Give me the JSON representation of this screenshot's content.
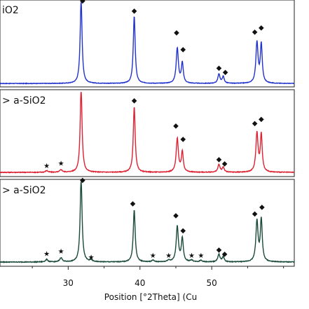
{
  "chart_data": {
    "type": "line",
    "xlabel": "Position [°2Theta] (Cu",
    "xlim": [
      20.5,
      61.5
    ],
    "xticks": [
      30,
      40,
      50
    ],
    "xtick_labels": [
      "30",
      "40",
      "50"
    ],
    "diamond_symbol": "◆",
    "star_symbol": "★",
    "panels": [
      {
        "label": "iO2",
        "color": "#2233cc",
        "base": 0.04,
        "noise": 0.003,
        "peaks": [
          {
            "x": 31.8,
            "h": 1.0,
            "w": 0.16
          },
          {
            "x": 39.2,
            "h": 0.8,
            "w": 0.16
          },
          {
            "x": 45.2,
            "h": 0.42,
            "w": 0.18
          },
          {
            "x": 45.9,
            "h": 0.24,
            "w": 0.16
          },
          {
            "x": 51.0,
            "h": 0.11,
            "w": 0.18
          },
          {
            "x": 51.6,
            "h": 0.08,
            "w": 0.16
          },
          {
            "x": 56.3,
            "h": 0.48,
            "w": 0.18
          },
          {
            "x": 56.9,
            "h": 0.46,
            "w": 0.16
          }
        ],
        "diamonds": [
          32.0,
          39.2,
          45.1,
          46.0,
          51.0,
          51.9,
          56.0,
          56.9
        ],
        "diamond_y": [
          1.0,
          0.88,
          0.62,
          0.42,
          0.2,
          0.15,
          0.63,
          0.68
        ],
        "stars": [],
        "star_y": []
      },
      {
        "label": "> a-SiO2",
        "color": "#dd2233",
        "base": 0.05,
        "noise": 0.004,
        "peaks": [
          {
            "x": 27.0,
            "h": 0.02,
            "w": 0.2
          },
          {
            "x": 29.0,
            "h": 0.03,
            "w": 0.2
          },
          {
            "x": 31.8,
            "h": 1.0,
            "w": 0.16
          },
          {
            "x": 39.2,
            "h": 0.78,
            "w": 0.16
          },
          {
            "x": 45.2,
            "h": 0.4,
            "w": 0.18
          },
          {
            "x": 45.9,
            "h": 0.24,
            "w": 0.16
          },
          {
            "x": 51.0,
            "h": 0.09,
            "w": 0.18
          },
          {
            "x": 51.6,
            "h": 0.06,
            "w": 0.16
          },
          {
            "x": 56.3,
            "h": 0.46,
            "w": 0.18
          },
          {
            "x": 56.9,
            "h": 0.44,
            "w": 0.16
          }
        ],
        "diamonds": [
          39.2,
          45.0,
          46.0,
          51.0,
          51.8,
          56.0,
          56.9
        ],
        "diamond_y": [
          0.88,
          0.58,
          0.42,
          0.18,
          0.13,
          0.61,
          0.66
        ],
        "stars": [
          27.0,
          29.0
        ],
        "star_y": [
          0.1,
          0.13
        ]
      },
      {
        "label": "> a-SiO2",
        "color": "#1a4a3a",
        "base": 0.05,
        "noise": 0.004,
        "peaks": [
          {
            "x": 27.0,
            "h": 0.03,
            "w": 0.2
          },
          {
            "x": 29.0,
            "h": 0.05,
            "w": 0.2
          },
          {
            "x": 31.8,
            "h": 1.0,
            "w": 0.16
          },
          {
            "x": 33.2,
            "h": 0.02,
            "w": 0.2
          },
          {
            "x": 39.2,
            "h": 0.62,
            "w": 0.16
          },
          {
            "x": 41.8,
            "h": 0.02,
            "w": 0.2
          },
          {
            "x": 44.0,
            "h": 0.02,
            "w": 0.2
          },
          {
            "x": 45.2,
            "h": 0.42,
            "w": 0.18
          },
          {
            "x": 45.9,
            "h": 0.28,
            "w": 0.16
          },
          {
            "x": 47.2,
            "h": 0.02,
            "w": 0.2
          },
          {
            "x": 48.5,
            "h": 0.02,
            "w": 0.2
          },
          {
            "x": 51.0,
            "h": 0.09,
            "w": 0.18
          },
          {
            "x": 51.6,
            "h": 0.06,
            "w": 0.16
          },
          {
            "x": 56.3,
            "h": 0.48,
            "w": 0.18
          },
          {
            "x": 56.9,
            "h": 0.5,
            "w": 0.16
          }
        ],
        "diamonds": [
          32.0,
          39.0,
          45.0,
          46.0,
          51.0,
          51.8,
          56.0,
          57.0
        ],
        "diamond_y": [
          1.0,
          0.72,
          0.58,
          0.4,
          0.17,
          0.12,
          0.6,
          0.68
        ],
        "stars": [
          27.0,
          29.0,
          33.2,
          41.8,
          44.0,
          47.2,
          48.5
        ],
        "star_y": [
          0.12,
          0.15,
          0.08,
          0.1,
          0.1,
          0.1,
          0.1
        ]
      }
    ]
  }
}
